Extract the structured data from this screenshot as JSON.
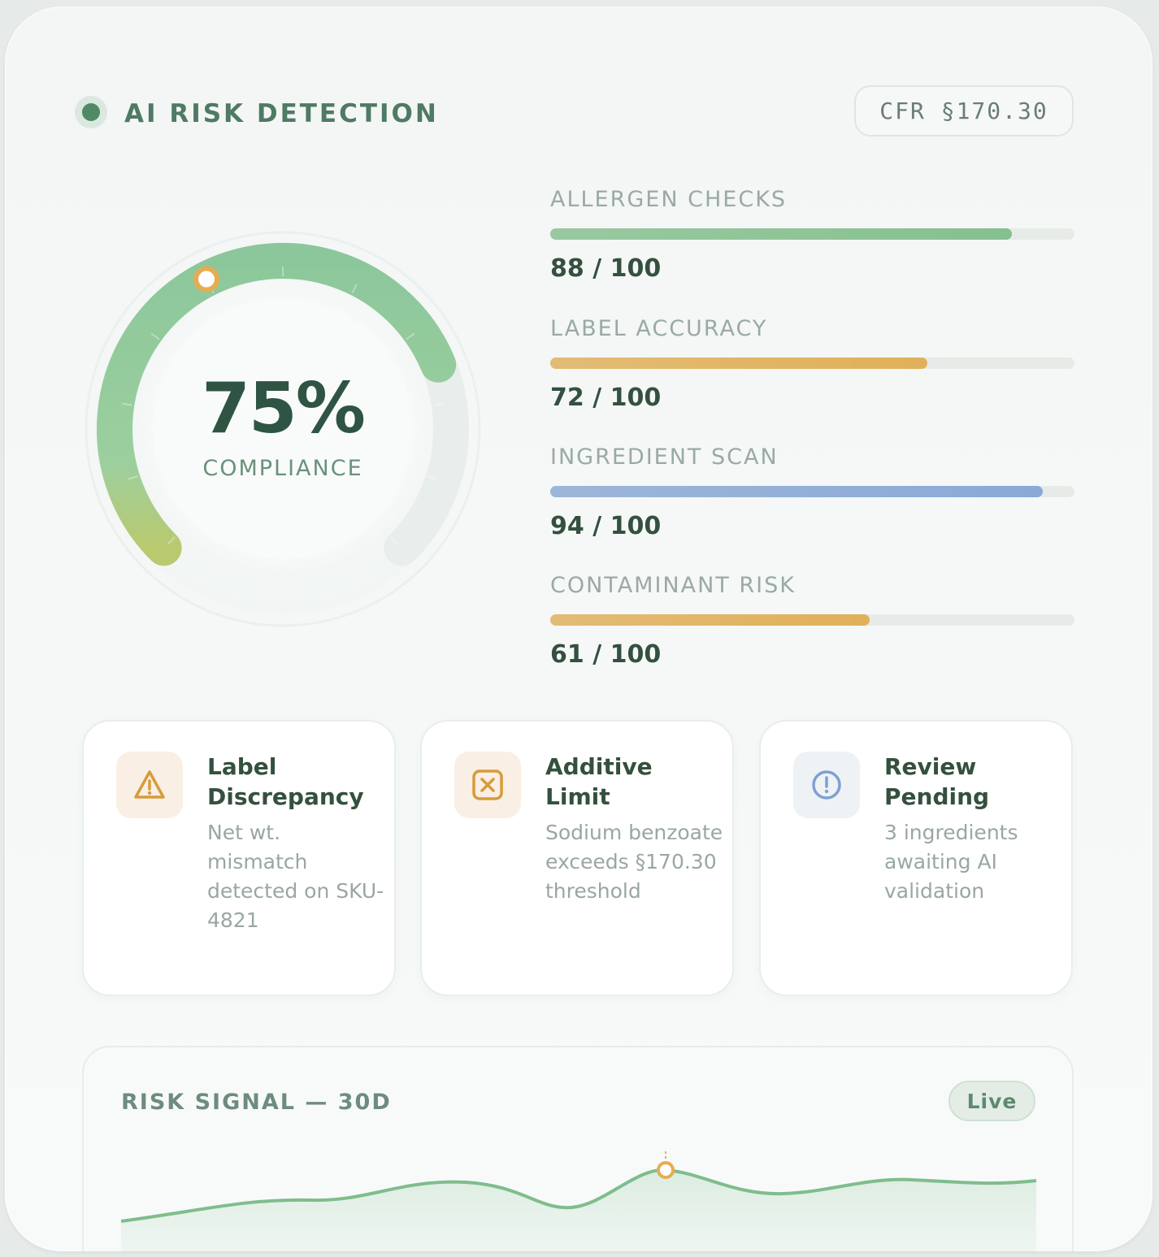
{
  "header": {
    "title": "AI RISK DETECTION",
    "badge": "CFR §170.30"
  },
  "gauge": {
    "value": 75,
    "value_label": "75%",
    "label": "COMPLIANCE",
    "colors": {
      "fill": "#8cc79b",
      "end": "#bfcf7a",
      "marker": "#e6ac52"
    }
  },
  "metrics": [
    {
      "label": "ALLERGEN CHECKS",
      "score": 88,
      "value_text": "88 / 100",
      "color": "#86c08f"
    },
    {
      "label": "LABEL ACCURACY",
      "score": 72,
      "value_text": "72 / 100",
      "color": "#e1b059"
    },
    {
      "label": "INGREDIENT SCAN",
      "score": 94,
      "value_text": "94 / 100",
      "color": "#8aa9d6"
    },
    {
      "label": "CONTAMINANT RISK",
      "score": 61,
      "value_text": "61 / 100",
      "color": "#e1b059"
    }
  ],
  "alerts": [
    {
      "title": "Label Discrepancy",
      "body": "Net wt. mismatch detected on SKU-4821",
      "icon": "warning-icon",
      "icon_color": "#d69b3c",
      "icon_bg": "#faefe4"
    },
    {
      "title": "Additive Limit",
      "body": "Sodium benzoate exceeds §170.30 threshold",
      "icon": "close-box-icon",
      "icon_color": "#d69b3c",
      "icon_bg": "#faefe4"
    },
    {
      "title": "Review Pending",
      "body": "3 ingredients awaiting AI validation",
      "icon": "info-circle-icon",
      "icon_color": "#7f9fd3",
      "icon_bg": "#eef2f4"
    }
  ],
  "risk_chart": {
    "title": "RISK SIGNAL — 30D",
    "live_label": "Live",
    "line_color": "#7fbd8c",
    "marker_color": "#e6ac52"
  }
}
